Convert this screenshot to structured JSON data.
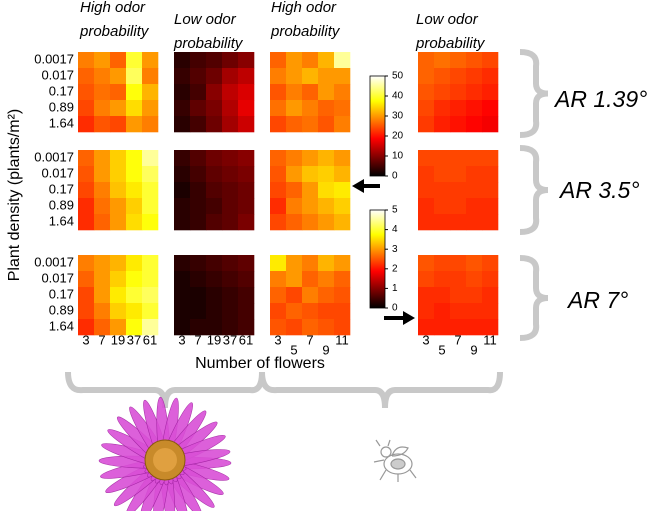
{
  "chart_data": {
    "type": "heatmap",
    "ylabel": "Plant density (plants/m²)",
    "xlabel": "Number of flowers",
    "column_titles": [
      "High odor probability",
      "Low odor probability",
      "High odor probability",
      "Low odor probability"
    ],
    "row_titles": [
      "AR 1.39°",
      "AR 3.5°",
      "AR 7°"
    ],
    "y_categories": [
      "0.0017",
      "0.017",
      "0.17",
      "0.89",
      "1.64"
    ],
    "x_categories_bee": [
      "3",
      "7",
      "19",
      "37",
      "61"
    ],
    "x_categories_fly": [
      "3",
      "5",
      "7",
      "9",
      "11"
    ],
    "colorbars": [
      {
        "lim": [
          0,
          50
        ],
        "ticks": [
          0,
          10,
          20,
          30,
          40,
          50
        ]
      },
      {
        "lim": [
          0,
          5
        ],
        "ticks": [
          0,
          1,
          2,
          3,
          4,
          5
        ]
      }
    ],
    "panels": [
      [
        [
          [
            28,
            30,
            26,
            40,
            30
          ],
          [
            26,
            28,
            30,
            42,
            28
          ],
          [
            25,
            27,
            26,
            38,
            32
          ],
          [
            24,
            28,
            30,
            35,
            30
          ],
          [
            22,
            25,
            24,
            30,
            28
          ]
        ],
        [
          [
            3,
            5,
            6,
            8,
            10
          ],
          [
            4,
            6,
            8,
            12,
            14
          ],
          [
            3,
            5,
            10,
            14,
            16
          ],
          [
            4,
            7,
            9,
            13,
            17
          ],
          [
            3,
            5,
            8,
            12,
            15
          ]
        ],
        [
          [
            26,
            30,
            28,
            32,
            45
          ],
          [
            28,
            30,
            32,
            30,
            30
          ],
          [
            25,
            28,
            26,
            30,
            28
          ],
          [
            27,
            30,
            28,
            26,
            27
          ],
          [
            24,
            26,
            27,
            25,
            28
          ]
        ],
        [
          [
            2.6,
            2.7,
            2.6,
            2.5,
            2.4
          ],
          [
            2.6,
            2.5,
            2.4,
            2.3,
            2.2
          ],
          [
            2.5,
            2.4,
            2.3,
            2.2,
            2.1
          ],
          [
            2.4,
            2.2,
            2.1,
            2.0,
            1.9
          ],
          [
            2.3,
            2.1,
            2.0,
            1.9,
            1.8
          ]
        ]
      ],
      [
        [
          [
            26,
            30,
            34,
            38,
            45
          ],
          [
            25,
            30,
            34,
            38,
            42
          ],
          [
            24,
            28,
            33,
            36,
            40
          ],
          [
            22,
            27,
            30,
            34,
            40
          ],
          [
            22,
            26,
            30,
            35,
            38
          ]
        ],
        [
          [
            4,
            6,
            8,
            9,
            10
          ],
          [
            3,
            5,
            7,
            8,
            9
          ],
          [
            2,
            4,
            6,
            7,
            8
          ],
          [
            3,
            4,
            5,
            7,
            8
          ],
          [
            3,
            4,
            6,
            7,
            9
          ]
        ],
        [
          [
            26,
            28,
            30,
            32,
            30
          ],
          [
            25,
            30,
            33,
            34,
            32
          ],
          [
            24,
            26,
            30,
            35,
            36
          ],
          [
            22,
            28,
            30,
            32,
            34
          ],
          [
            24,
            26,
            28,
            30,
            32
          ]
        ],
        [
          [
            2.4,
            2.4,
            2.4,
            2.4,
            2.4
          ],
          [
            2.3,
            2.4,
            2.4,
            2.3,
            2.3
          ],
          [
            2.3,
            2.3,
            2.3,
            2.3,
            2.3
          ],
          [
            2.2,
            2.3,
            2.3,
            2.2,
            2.2
          ],
          [
            2.2,
            2.2,
            2.2,
            2.2,
            2.2
          ]
        ]
      ],
      [
        [
          [
            28,
            30,
            32,
            36,
            40
          ],
          [
            26,
            30,
            34,
            38,
            40
          ],
          [
            24,
            30,
            36,
            40,
            42
          ],
          [
            24,
            28,
            34,
            36,
            40
          ],
          [
            22,
            26,
            30,
            38,
            45
          ]
        ],
        [
          [
            3,
            4,
            5,
            6,
            7
          ],
          [
            2,
            3,
            4,
            5,
            6
          ],
          [
            2,
            2,
            3,
            4,
            5
          ],
          [
            2,
            2,
            3,
            4,
            5
          ],
          [
            2,
            3,
            3,
            4,
            5
          ]
        ],
        [
          [
            36,
            30,
            28,
            32,
            30
          ],
          [
            28,
            30,
            26,
            28,
            26
          ],
          [
            26,
            24,
            28,
            26,
            25
          ],
          [
            24,
            26,
            25,
            24,
            24
          ],
          [
            25,
            24,
            26,
            25,
            24
          ]
        ],
        [
          [
            2.5,
            2.4,
            2.4,
            2.5,
            2.4
          ],
          [
            2.4,
            2.3,
            2.3,
            2.4,
            2.3
          ],
          [
            2.2,
            2.2,
            2.3,
            2.3,
            2.2
          ],
          [
            2.2,
            2.1,
            2.2,
            2.2,
            2.2
          ],
          [
            2.1,
            2.1,
            2.1,
            2.1,
            2.1
          ]
        ]
      ]
    ]
  }
}
